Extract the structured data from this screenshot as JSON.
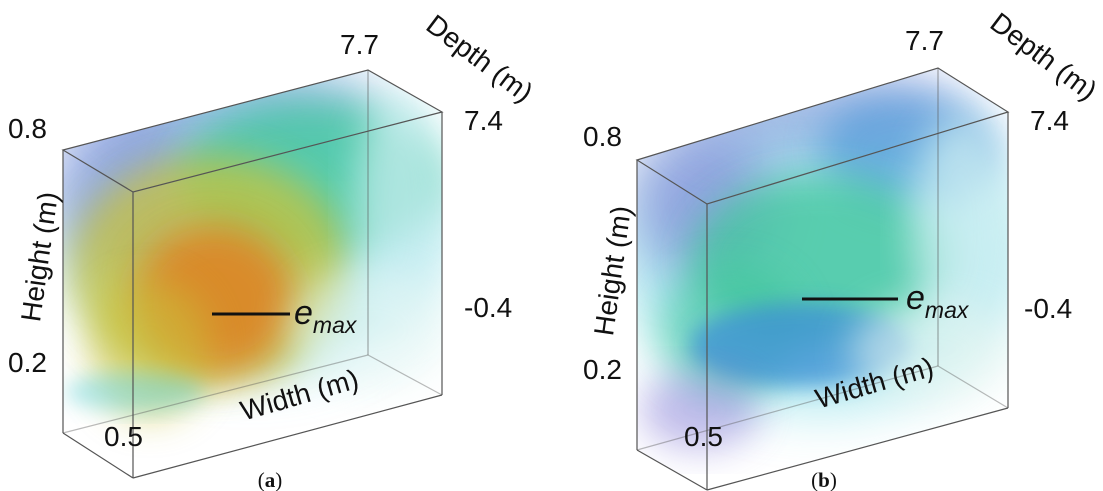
{
  "panels": [
    {
      "caption": "(a)",
      "caption_letter": "a",
      "axes": {
        "height_label": "Height (m)",
        "width_label": "Width (m)",
        "depth_label": "Depth (m)",
        "height_top": "0.8",
        "height_bottom": "0.2",
        "width_start": "0.5",
        "depth_top": "7.7",
        "depth_mid": "7.4",
        "depth_bottom": "-0.4"
      },
      "marker": {
        "symbol": "e",
        "subscript": "max"
      }
    },
    {
      "caption": "(b)",
      "caption_letter": "b",
      "axes": {
        "height_label": "Height (m)",
        "width_label": "Width (m)",
        "depth_label": "Depth (m)",
        "height_top": "0.8",
        "height_bottom": "0.2",
        "width_start": "0.5",
        "depth_top": "7.7",
        "depth_mid": "7.4",
        "depth_bottom": "-0.4"
      },
      "marker": {
        "symbol": "e",
        "subscript": "max"
      }
    }
  ],
  "colors": {
    "box_edge": "#555555",
    "hot": "#e07b1f",
    "warm": "#c9c23a",
    "green": "#3cc59a",
    "cyan": "#5bd1de",
    "blue": "#3d8fd6",
    "violet": "#7a6fd3"
  }
}
